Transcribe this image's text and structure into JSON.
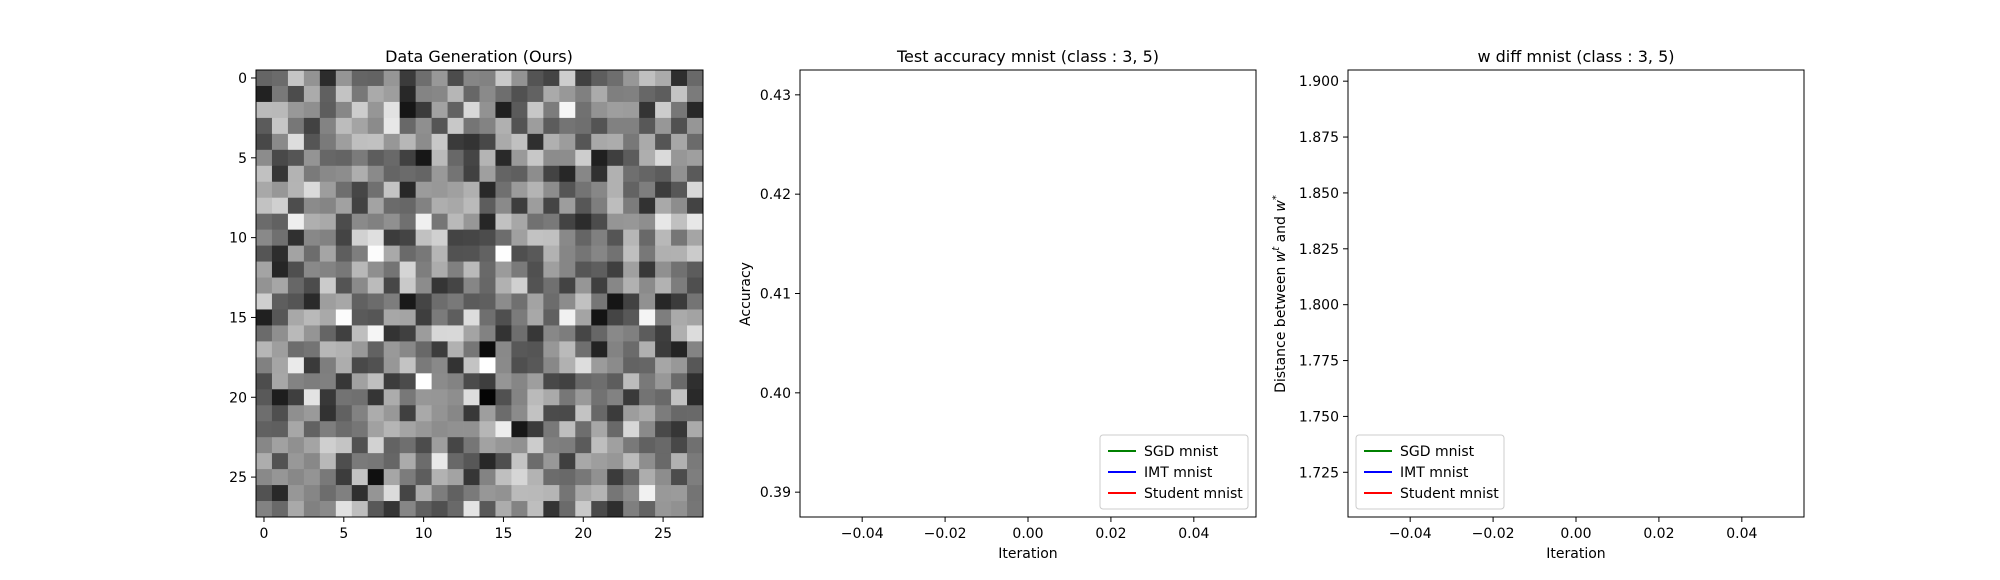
{
  "chart_data": [
    {
      "type": "heatmap",
      "title": "Data Generation (Ours)",
      "colormap": "gray",
      "rows": 28,
      "cols": 28,
      "x_ticks": [
        "0",
        "5",
        "10",
        "15",
        "20",
        "25"
      ],
      "y_ticks": [
        "0",
        "5",
        "10",
        "15",
        "20",
        "25"
      ]
    },
    {
      "type": "line",
      "title": "Test accuracy mnist (class : 3, 5)",
      "xlabel": "Iteration",
      "ylabel": "Accuracy",
      "xlim": [
        -0.055,
        0.055
      ],
      "ylim": [
        0.3875,
        0.4325
      ],
      "x_ticks": [
        "−0.04",
        "−0.02",
        "0.00",
        "0.02",
        "0.04"
      ],
      "y_ticks": [
        "0.39",
        "0.40",
        "0.41",
        "0.42",
        "0.43"
      ],
      "grid": false,
      "legend_position": "lower-right",
      "series": [
        {
          "name": "SGD mnist",
          "color": "#008000",
          "x": [],
          "y": []
        },
        {
          "name": "IMT mnist",
          "color": "#0000ff",
          "x": [],
          "y": []
        },
        {
          "name": "Student mnist",
          "color": "#ff0000",
          "x": [],
          "y": []
        }
      ]
    },
    {
      "type": "line",
      "title": "w diff mnist (class : 3, 5)",
      "xlabel": "Iteration",
      "ylabel": "Distance between w^t and w^*",
      "ylabel_parts": [
        "Distance between ",
        "w",
        "t",
        " and ",
        "w",
        "*"
      ],
      "xlim": [
        -0.055,
        0.055
      ],
      "ylim": [
        1.705,
        1.905
      ],
      "x_ticks": [
        "−0.04",
        "−0.02",
        "0.00",
        "0.02",
        "0.04"
      ],
      "y_ticks": [
        "1.725",
        "1.750",
        "1.775",
        "1.800",
        "1.825",
        "1.850",
        "1.875",
        "1.900"
      ],
      "grid": false,
      "legend_position": "lower-left",
      "series": [
        {
          "name": "SGD mnist",
          "color": "#008000",
          "x": [],
          "y": []
        },
        {
          "name": "IMT mnist",
          "color": "#0000ff",
          "x": [],
          "y": []
        },
        {
          "name": "Student mnist",
          "color": "#ff0000",
          "x": [],
          "y": []
        }
      ]
    }
  ]
}
